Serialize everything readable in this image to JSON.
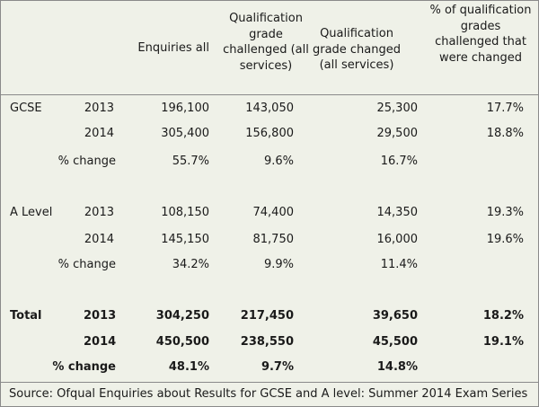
{
  "headers": {
    "col1": "Enquiries all",
    "col2": "Qualification grade challenged (all services)",
    "col3": "Qualification grade changed (all services)",
    "col4": "% of qualification grades challenged that were changed"
  },
  "rows": [
    {
      "group": "GCSE",
      "label": "2013",
      "enquiries": "196,100",
      "challenged": "143,050",
      "changed": "25,300",
      "pct": "17.7%"
    },
    {
      "group": "",
      "label": "2014",
      "enquiries": "305,400",
      "challenged": "156,800",
      "changed": "29,500",
      "pct": "18.8%"
    },
    {
      "group": "",
      "label": "% change",
      "enquiries": "55.7%",
      "challenged": "9.6%",
      "changed": "16.7%",
      "pct": ""
    },
    {
      "group": "A Level",
      "label": "2013",
      "enquiries": "108,150",
      "challenged": "74,400",
      "changed": "14,350",
      "pct": "19.3%"
    },
    {
      "group": "",
      "label": "2014",
      "enquiries": "145,150",
      "challenged": "81,750",
      "changed": "16,000",
      "pct": "19.6%"
    },
    {
      "group": "",
      "label": "% change",
      "enquiries": "34.2%",
      "challenged": "9.9%",
      "changed": "11.4%",
      "pct": ""
    },
    {
      "group": "Total",
      "label": "2013",
      "enquiries": "304,250",
      "challenged": "217,450",
      "changed": "39,650",
      "pct": "18.2%"
    },
    {
      "group": "",
      "label": "2014",
      "enquiries": "450,500",
      "challenged": "238,550",
      "changed": "45,500",
      "pct": "19.1%"
    },
    {
      "group": "",
      "label": "% change",
      "enquiries": "48.1%",
      "challenged": "9.7%",
      "changed": "14.8%",
      "pct": ""
    }
  ],
  "source": "Source: Ofqual Enquiries about Results for GCSE and A level: Summer 2014 Exam Series",
  "colors": {
    "background": "#eff1e8",
    "border": "#8a8a8a",
    "text": "#1a1a1a"
  }
}
